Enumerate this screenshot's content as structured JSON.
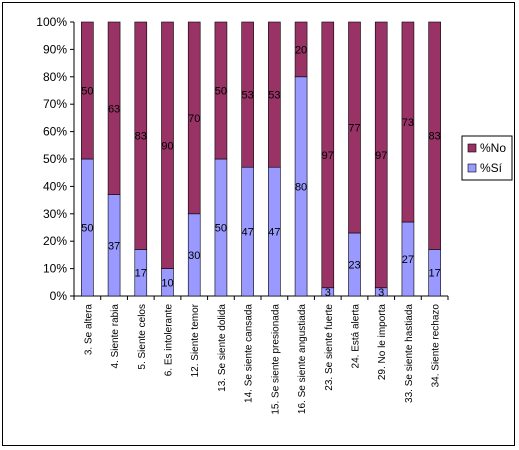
{
  "chart_data": {
    "type": "bar",
    "stacked": true,
    "percent_stacked": true,
    "categories": [
      "3. Se altera",
      "4. Siente rabia",
      "5. Siente celos",
      "6. Es intolerante",
      "12. Siente temor",
      "13. Se siente dolida",
      "14. Se siente cansada",
      "15. Se siente presionada",
      "16. Se siente angustiada",
      "23. Se siente fuerte",
      "24. Está alerta",
      "29. No le importa",
      "33. Se siente hastiada",
      "34. Siente rechazo"
    ],
    "series": [
      {
        "name": "%Sí",
        "color": "#9999ff",
        "values": [
          50,
          37,
          17,
          10,
          30,
          50,
          47,
          47,
          80,
          3,
          23,
          3,
          27,
          17
        ]
      },
      {
        "name": "%No",
        "color": "#993366",
        "values": [
          50,
          63,
          83,
          90,
          70,
          50,
          53,
          53,
          20,
          97,
          77,
          97,
          73,
          83
        ]
      }
    ],
    "y_ticks": [
      "0%",
      "10%",
      "20%",
      "30%",
      "40%",
      "50%",
      "60%",
      "70%",
      "80%",
      "90%",
      "100%"
    ],
    "ylim": [
      0,
      100
    ],
    "legend_position": "right",
    "grid": false,
    "title": "",
    "xlabel": "",
    "ylabel": ""
  }
}
